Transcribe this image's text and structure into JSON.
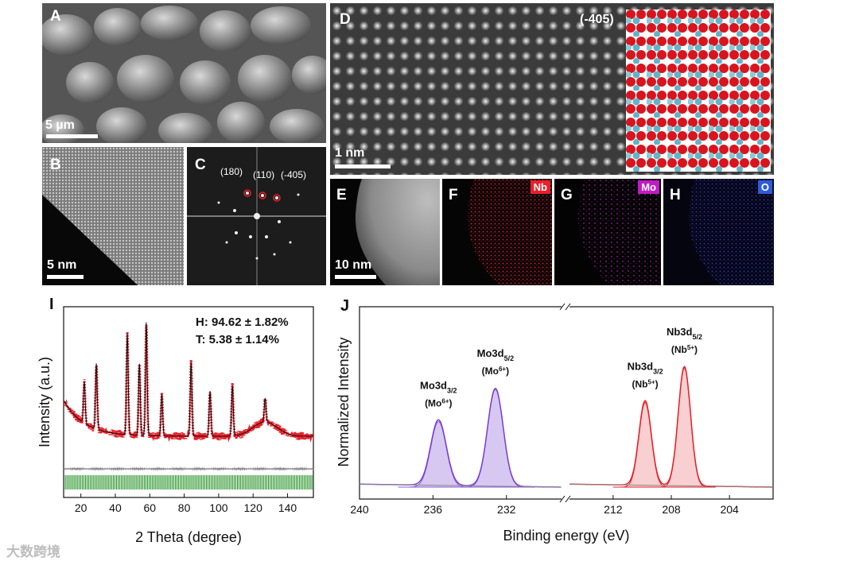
{
  "panels": {
    "A": {
      "label": "A",
      "scale": "5 µm"
    },
    "B": {
      "label": "B",
      "scale": "5 nm"
    },
    "C": {
      "label": "C",
      "planes": [
        "(180)",
        "(110)",
        "(-405)"
      ]
    },
    "D": {
      "label": "D",
      "plane": "(-405)",
      "scale": "1 nm"
    },
    "E": {
      "label": "E",
      "scale": "10 nm"
    },
    "F": {
      "label": "F",
      "element": "Nb",
      "color": "#e8202a"
    },
    "G": {
      "label": "G",
      "element": "Mo",
      "color": "#c21bc4"
    },
    "H": {
      "label": "H",
      "element": "O",
      "color": "#2f5bd6"
    },
    "I": {
      "label": "I"
    },
    "J": {
      "label": "J"
    }
  },
  "chart_data": [
    {
      "type": "line",
      "title": "",
      "xlabel": "2 Theta (degree)",
      "ylabel": "Intensity (a.u.)",
      "xlim": [
        10,
        155
      ],
      "xticks": [
        20,
        40,
        60,
        80,
        100,
        120,
        140
      ],
      "annotations": [
        "H: 94.62 ± 1.82%",
        "T: 5.38 ± 1.14%"
      ],
      "peaks_2theta": [
        22,
        29,
        47,
        54,
        58,
        67,
        84,
        95,
        108,
        127
      ],
      "series": [
        {
          "name": "observed",
          "color": "#e8202a"
        },
        {
          "name": "calculated",
          "color": "#111111"
        },
        {
          "name": "difference",
          "color": "#888888"
        },
        {
          "name": "Bragg positions",
          "color": "#1f8f1f"
        }
      ]
    },
    {
      "type": "line",
      "title": "",
      "xlabel": "Binding energy (eV)",
      "ylabel": "Normalized Intensity",
      "xticks_left": [
        240,
        236,
        232
      ],
      "xticks_right": [
        212,
        208,
        204
      ],
      "peaks": [
        {
          "name": "Mo3d3/2",
          "label_main": "Mo3d",
          "sub": "3/2",
          "state": "(Mo",
          "sup": "6+",
          "position_eV": 235.7,
          "relative_height": 0.55,
          "color": "#8a5cd6"
        },
        {
          "name": "Mo3d5/2",
          "label_main": "Mo3d",
          "sub": "5/2",
          "state": "(Mo",
          "sup": "6+",
          "position_eV": 232.6,
          "relative_height": 0.82,
          "color": "#8a5cd6"
        },
        {
          "name": "Nb3d3/2",
          "label_main": "Nb3d",
          "sub": "3/2",
          "state": "(Nb",
          "sup": "5+",
          "position_eV": 209.8,
          "relative_height": 0.71,
          "color": "#e8202a"
        },
        {
          "name": "Nb3d5/2",
          "label_main": "Nb3d",
          "sub": "5/2",
          "state": "(Nb",
          "sup": "5+",
          "position_eV": 207.1,
          "relative_height": 1.0,
          "color": "#e8202a"
        }
      ]
    }
  ],
  "watermark": "大数跨境"
}
